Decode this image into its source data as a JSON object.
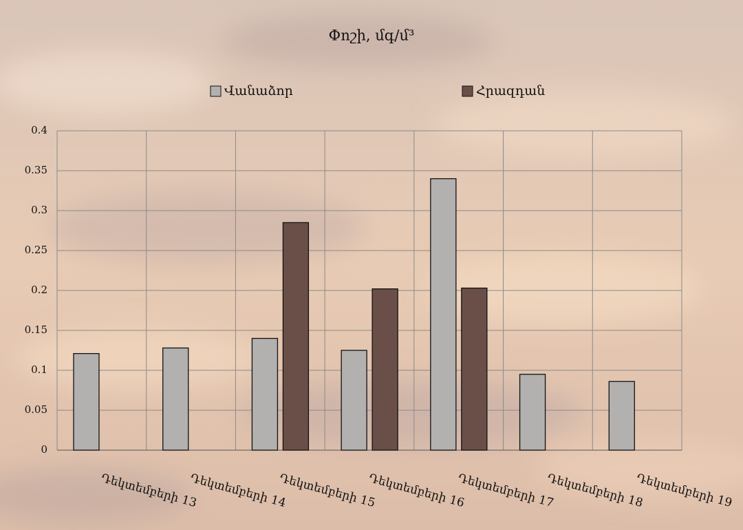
{
  "chart_data": {
    "type": "bar",
    "title": "Փոշի, մգ/մ³",
    "categories": [
      "Դեկտեմբերի 13",
      "Դեկտեմբերի 14",
      "Դեկտեմբերի 15",
      "Դեկտեմբերի 16",
      "Դեկտեմբերի 17",
      "Դեկտեմբերի 18",
      "Դեկտեմբերի 19"
    ],
    "series": [
      {
        "name": "Վանաձոր",
        "color": "#b3b0b0",
        "values": [
          0.121,
          0.128,
          0.14,
          0.125,
          0.34,
          0.095,
          0.086
        ]
      },
      {
        "name": "Հրազդան",
        "color": "#6a4f49",
        "values": [
          null,
          null,
          0.285,
          0.202,
          0.203,
          null,
          null
        ]
      }
    ],
    "ylim": [
      0,
      0.4
    ],
    "yticks": [
      0,
      0.05,
      0.1,
      0.15,
      0.2,
      0.25,
      0.3,
      0.35,
      0.4
    ],
    "grid": true,
    "legend": "top"
  }
}
